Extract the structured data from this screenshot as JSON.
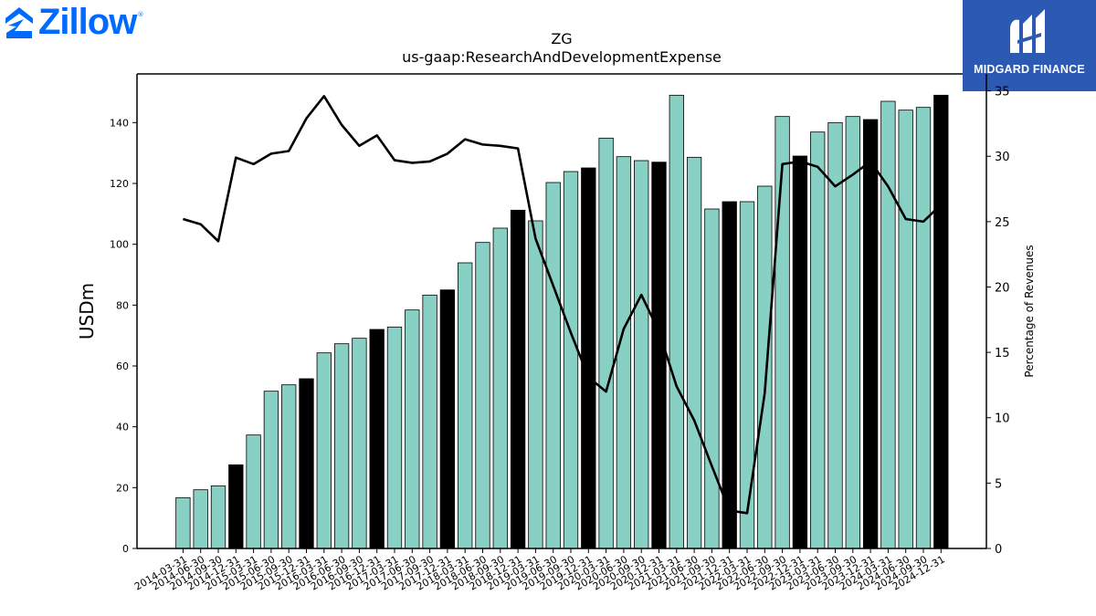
{
  "header": {
    "logo_text": "Zillow",
    "logo_reg": "®",
    "brand_text": "MIDGARD FINANCE"
  },
  "chart_data": {
    "type": "bar",
    "title": "ZG",
    "subtitle": "us-gaap:ResearchAndDevelopmentExpense",
    "ylabel": "USDm",
    "y2label": "Percentage of Revenues",
    "ylim": [
      0,
      156
    ],
    "y2lim": [
      0,
      36.3
    ],
    "yticks": [
      0,
      20,
      40,
      60,
      80,
      100,
      120,
      140
    ],
    "y2ticks": [
      0,
      5,
      10,
      15,
      20,
      25,
      30,
      35
    ],
    "colors": {
      "bar": "#88d0c4",
      "bar_q4": "#000000",
      "line": "#000000",
      "edge": "#000000"
    },
    "categories": [
      "2014-03-31",
      "2014-06-30",
      "2014-09-30",
      "2014-12-31",
      "2015-03-31",
      "2015-06-30",
      "2015-09-30",
      "2015-12-31",
      "2016-03-31",
      "2016-06-30",
      "2016-09-30",
      "2016-12-31",
      "2017-03-31",
      "2017-06-30",
      "2017-09-30",
      "2017-12-31",
      "2018-03-31",
      "2018-06-30",
      "2018-09-30",
      "2018-12-31",
      "2019-03-31",
      "2019-06-30",
      "2019-09-30",
      "2019-12-31",
      "2020-03-31",
      "2020-06-30",
      "2020-09-30",
      "2020-12-31",
      "2021-03-31",
      "2021-06-30",
      "2021-09-30",
      "2021-12-31",
      "2022-03-31",
      "2022-06-30",
      "2022-09-30",
      "2022-12-31",
      "2023-03-31",
      "2023-06-30",
      "2023-09-30",
      "2023-12-31",
      "2024-03-31",
      "2024-06-30",
      "2024-09-30",
      "2024-12-31"
    ],
    "series": [
      {
        "values": [
          16.7,
          19.3,
          20.6,
          27.5,
          37.3,
          51.7,
          53.8,
          55.8,
          64.3,
          67.3,
          69.1,
          72.0,
          72.8,
          78.4,
          83.3,
          85.0,
          93.9,
          100.6,
          105.3,
          111.2,
          107.7,
          120.3,
          123.9,
          125.1,
          134.9,
          128.8,
          127.5,
          127.0,
          149.0,
          128.6,
          111.6,
          114.0,
          114.0,
          119.1,
          142.0,
          129.0,
          136.9,
          140.0,
          142.0,
          141.0,
          147.0,
          144.1,
          145.0,
          149.0
        ]
      },
      {
        "axis": "right",
        "values": [
          25.2,
          24.8,
          23.5,
          29.9,
          29.4,
          30.2,
          30.4,
          32.9,
          34.6,
          32.4,
          30.8,
          31.6,
          29.7,
          29.5,
          29.6,
          30.2,
          31.3,
          30.9,
          30.8,
          30.6,
          23.7,
          20.1,
          16.5,
          13.1,
          12.0,
          16.8,
          19.4,
          16.6,
          12.4,
          9.8,
          6.3,
          2.9,
          2.7,
          11.9,
          29.4,
          29.6,
          29.2,
          27.7,
          28.6,
          29.6,
          27.7,
          25.2,
          25.0,
          26.3
        ]
      }
    ]
  }
}
